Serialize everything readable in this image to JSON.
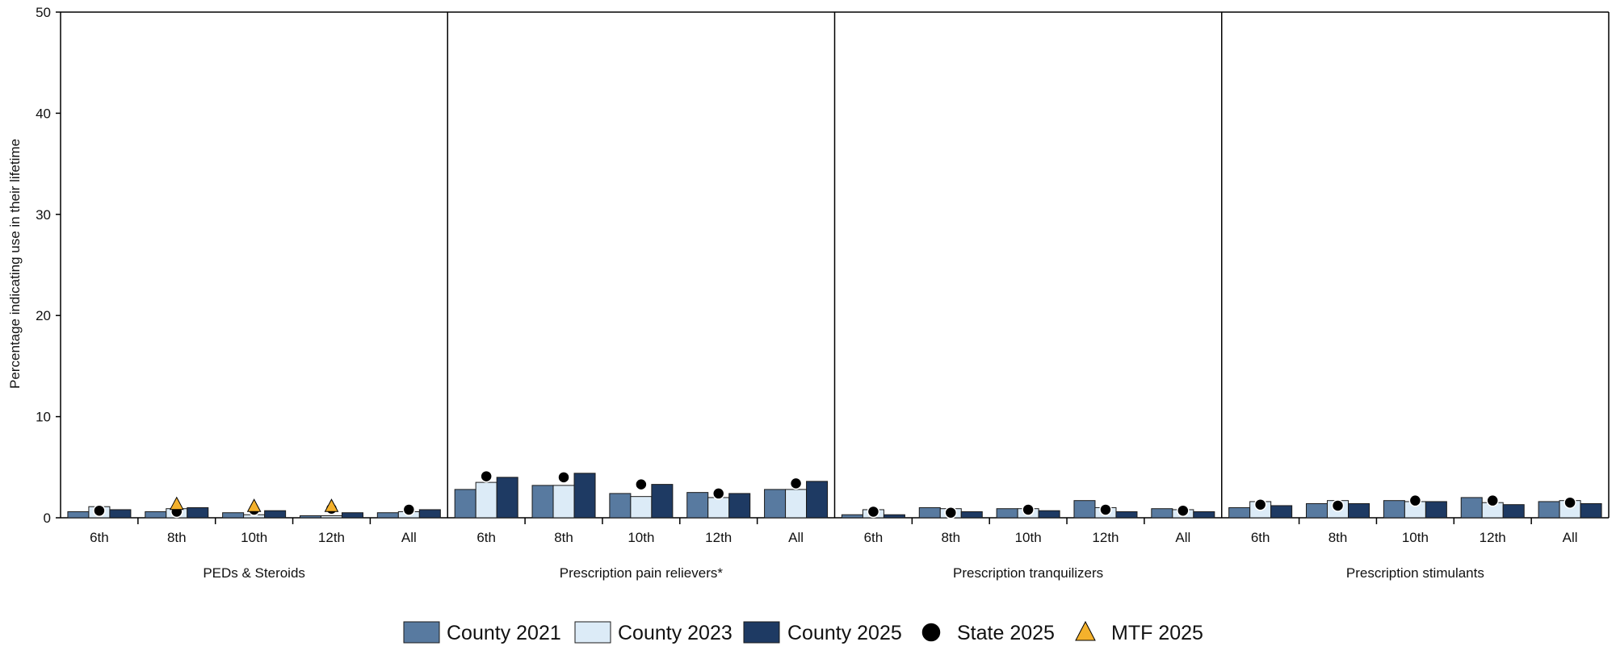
{
  "chart_data": {
    "type": "bar",
    "ylabel": "Percentage indicating use in their lifetime",
    "ylim": [
      0,
      50
    ],
    "yticks": [
      "0",
      "10",
      "20",
      "30",
      "40",
      "50"
    ],
    "grid": false,
    "legend_position": "bottom",
    "categories": [
      "6th",
      "8th",
      "10th",
      "12th",
      "All"
    ],
    "series_styles": [
      {
        "name": "County 2021",
        "color": "#587aa0",
        "marker": "bar"
      },
      {
        "name": "County 2023",
        "color": "#dcebf7",
        "marker": "bar"
      },
      {
        "name": "County 2025",
        "color": "#1e3a63",
        "marker": "bar"
      },
      {
        "name": "State 2025",
        "color": "#000000",
        "marker": "circle"
      },
      {
        "name": "MTF 2025",
        "color": "#f4b12c",
        "marker": "triangle"
      }
    ],
    "groups": [
      {
        "name": "PEDs & Steroids",
        "series": [
          {
            "name": "County 2021",
            "values": [
              0.6,
              0.6,
              0.5,
              0.2,
              0.5
            ]
          },
          {
            "name": "County 2023",
            "values": [
              1.1,
              0.9,
              0.3,
              0.2,
              0.6
            ]
          },
          {
            "name": "County 2025",
            "values": [
              0.8,
              1.0,
              0.7,
              0.5,
              0.8
            ]
          },
          {
            "name": "State 2025",
            "values": [
              0.7,
              0.6,
              0.8,
              0.9,
              0.8
            ]
          },
          {
            "name": "MTF 2025",
            "values": [
              null,
              1.3,
              1.1,
              1.1,
              null
            ]
          }
        ]
      },
      {
        "name": "Prescription pain relievers*",
        "series": [
          {
            "name": "County 2021",
            "values": [
              2.8,
              3.2,
              2.4,
              2.5,
              2.8
            ]
          },
          {
            "name": "County 2023",
            "values": [
              3.5,
              3.2,
              2.1,
              2.0,
              2.8
            ]
          },
          {
            "name": "County 2025",
            "values": [
              4.0,
              4.4,
              3.3,
              2.4,
              3.6
            ]
          },
          {
            "name": "State 2025",
            "values": [
              4.1,
              4.0,
              3.3,
              2.4,
              3.4
            ]
          },
          {
            "name": "MTF 2025",
            "values": [
              null,
              null,
              null,
              null,
              null
            ]
          }
        ]
      },
      {
        "name": "Prescription tranquilizers",
        "series": [
          {
            "name": "County 2021",
            "values": [
              0.3,
              1.0,
              0.9,
              1.7,
              0.9
            ]
          },
          {
            "name": "County 2023",
            "values": [
              0.8,
              0.9,
              0.9,
              1.0,
              0.8
            ]
          },
          {
            "name": "County 2025",
            "values": [
              0.3,
              0.6,
              0.7,
              0.6,
              0.6
            ]
          },
          {
            "name": "State 2025",
            "values": [
              0.6,
              0.5,
              0.8,
              0.8,
              0.7
            ]
          },
          {
            "name": "MTF 2025",
            "values": [
              null,
              null,
              null,
              null,
              null
            ]
          }
        ]
      },
      {
        "name": "Prescription stimulants",
        "series": [
          {
            "name": "County 2021",
            "values": [
              1.0,
              1.4,
              1.7,
              2.0,
              1.6
            ]
          },
          {
            "name": "County 2023",
            "values": [
              1.6,
              1.7,
              1.6,
              1.5,
              1.7
            ]
          },
          {
            "name": "County 2025",
            "values": [
              1.2,
              1.4,
              1.6,
              1.3,
              1.4
            ]
          },
          {
            "name": "State 2025",
            "values": [
              1.3,
              1.2,
              1.7,
              1.7,
              1.5
            ]
          },
          {
            "name": "MTF 2025",
            "values": [
              null,
              null,
              null,
              null,
              null
            ]
          }
        ]
      }
    ]
  }
}
